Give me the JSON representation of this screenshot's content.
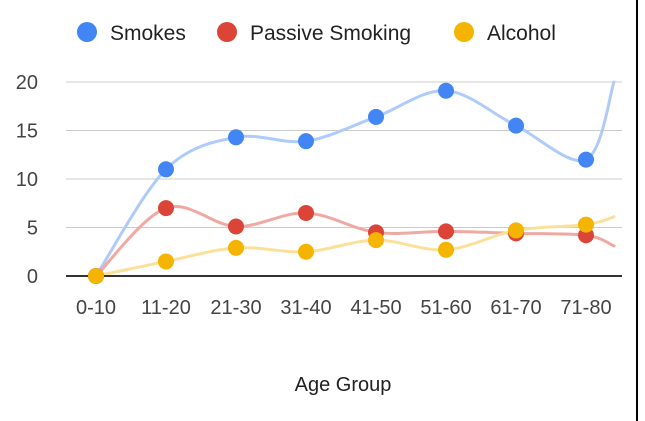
{
  "chart_data": {
    "type": "scatter",
    "title": "",
    "xlabel": "Age Group",
    "ylabel": "",
    "ylim": [
      0,
      20
    ],
    "y_ticks": [
      "0",
      "5",
      "10",
      "15",
      "20"
    ],
    "categories": [
      "0-10",
      "11-20",
      "21-30",
      "31-40",
      "41-50",
      "51-60",
      "61-70",
      "71-80"
    ],
    "grid": true,
    "trendlines": "smooth",
    "legend_position": "top",
    "series": [
      {
        "name": "Smokes",
        "color": "#4285f4",
        "trend_color": "#aecbfa",
        "values": [
          0,
          11,
          14.3,
          13.9,
          16.4,
          19.1,
          15.5,
          12
        ]
      },
      {
        "name": "Passive Smoking",
        "color": "#db4437",
        "trend_color": "#f0a9a2",
        "values": [
          0,
          7,
          5.1,
          6.5,
          4.5,
          4.6,
          4.4,
          4.2
        ]
      },
      {
        "name": "Alcohol",
        "color": "#f4b400",
        "trend_color": "#fbe09a",
        "values": [
          0,
          1.5,
          2.9,
          2.5,
          3.7,
          2.7,
          4.7,
          5.3
        ]
      }
    ],
    "trend_end_values": [
      20,
      3.1,
      6.1
    ]
  }
}
